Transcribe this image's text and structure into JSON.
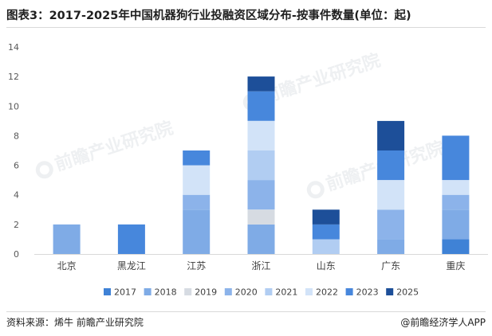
{
  "title": "图表3：2017-2025年中国机器狗行业投融资区域分布-按事件数量(单位：起)",
  "source": "资料来源：烯牛 前瞻产业研究院",
  "brand": "@前瞻经济学人APP",
  "watermark_text": "前瞻产业研究院",
  "colors": {
    "2017": "#3f82d6",
    "2018": "#7fabe6",
    "2019": "#d6dbe2",
    "2020": "#8cb3ea",
    "2021": "#b1cdf2",
    "2022": "#d2e3f8",
    "2023": "#4787dc",
    "2025": "#1d4f99"
  },
  "chart_data": {
    "type": "bar",
    "stacked": true,
    "categories": [
      "北京",
      "黑龙江",
      "江苏",
      "浙江",
      "山东",
      "广东",
      "重庆"
    ],
    "series": [
      {
        "name": "2017",
        "values": [
          0,
          0,
          0,
          0,
          0,
          0,
          1
        ]
      },
      {
        "name": "2018",
        "values": [
          2,
          0,
          3,
          2,
          0,
          1,
          2
        ]
      },
      {
        "name": "2019",
        "values": [
          0,
          0,
          0,
          1,
          0,
          0,
          0
        ]
      },
      {
        "name": "2020",
        "values": [
          0,
          0,
          1,
          2,
          0,
          2,
          1
        ]
      },
      {
        "name": "2021",
        "values": [
          0,
          0,
          0,
          2,
          1,
          0,
          0
        ]
      },
      {
        "name": "2022",
        "values": [
          0,
          0,
          2,
          2,
          0,
          2,
          1
        ]
      },
      {
        "name": "2023",
        "values": [
          0,
          2,
          1,
          2,
          1,
          2,
          3
        ]
      },
      {
        "name": "2025",
        "values": [
          0,
          0,
          0,
          1,
          1,
          2,
          0
        ]
      }
    ],
    "ylim": [
      0,
      14
    ],
    "yticks": [
      0,
      2,
      4,
      6,
      8,
      10,
      12,
      14
    ],
    "grid": false,
    "legend": "bottom"
  }
}
